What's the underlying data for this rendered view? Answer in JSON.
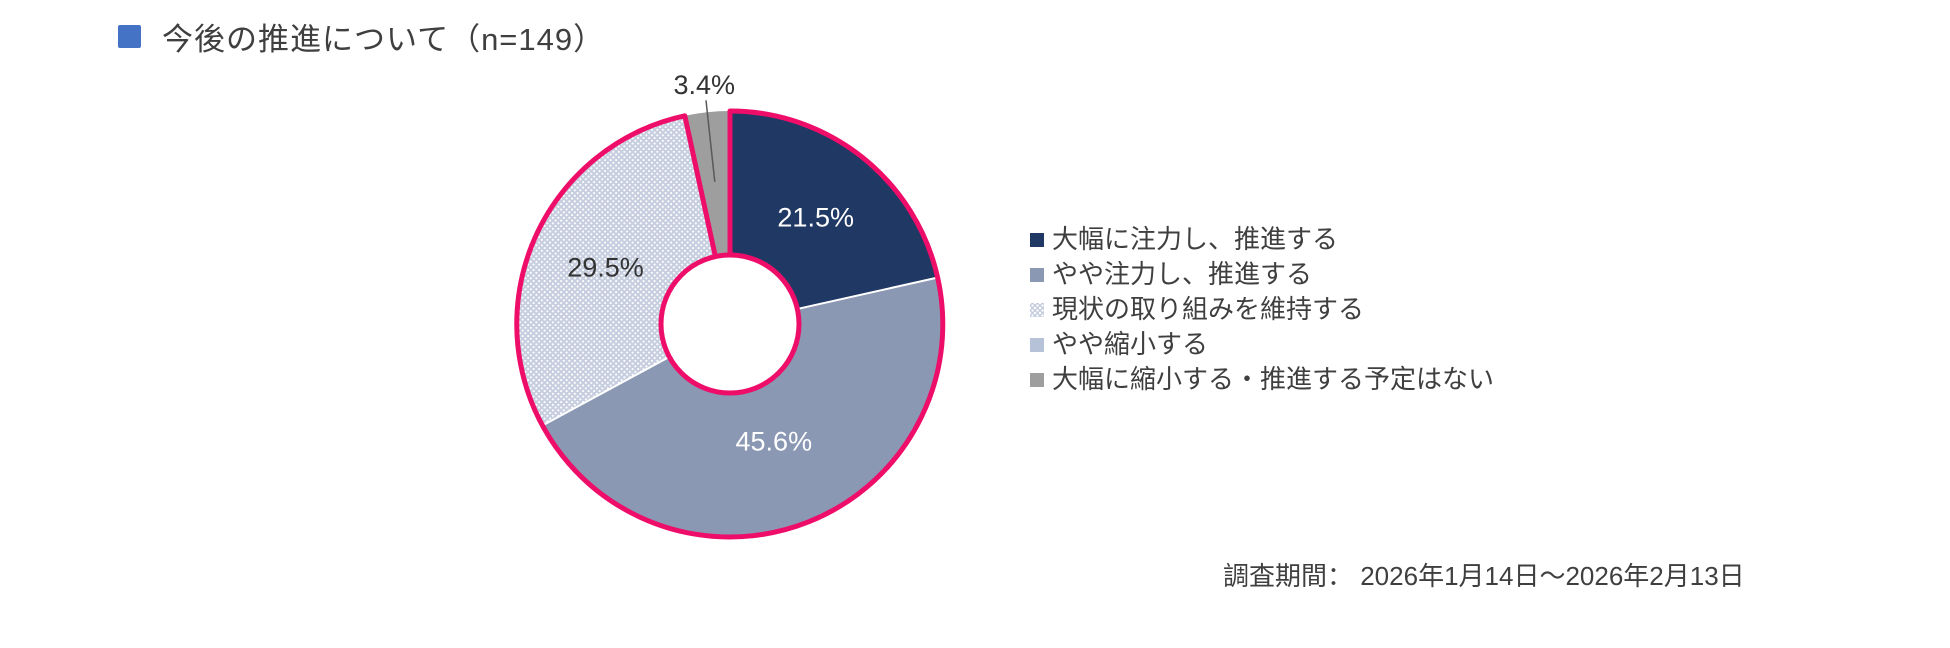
{
  "title": {
    "text": "今後の推進について（n=149）",
    "bullet_color": "#4472C4"
  },
  "footer": {
    "text": "調査期間： 2026年1月14日～2026年2月13日"
  },
  "colors": {
    "outline_pink": "#EE0E6A",
    "body_text": "#3F3F3F",
    "leader_line": "#595959"
  },
  "chart_data": {
    "type": "pie",
    "donut": true,
    "title": "今後の推進について（n=149）",
    "n_label": "n=149",
    "start_angle_deg": 0,
    "direction": "clockwise",
    "legend_position": "right",
    "outline_color": "#EE0E6A",
    "hole_ratio": 0.32,
    "categories": [
      "大幅に注力し、推進する",
      "やや注力し、推進する",
      "現状の取り組みを維持する",
      "やや縮小する",
      "大幅に縮小する・推進する予定はない"
    ],
    "values": [
      21.5,
      45.6,
      29.5,
      0.0,
      3.4
    ],
    "slices": [
      {
        "label": "大幅に注力し、推進する",
        "value": 21.5,
        "display": "21.5%",
        "color": "#1F3864",
        "pattern": false,
        "label_color": "#FFFFFF",
        "label_placement": "inside",
        "outlined": true,
        "label_radius": 137
      },
      {
        "label": "やや注力し、推進する",
        "value": 45.6,
        "display": "45.6%",
        "color": "#8A98B4",
        "pattern": false,
        "label_color": "#FFFFFF",
        "label_placement": "inside",
        "outlined": true,
        "label_radius": 125
      },
      {
        "label": "現状の取り組みを維持する",
        "value": 29.5,
        "display": "29.5%",
        "color": "#C6CEDF",
        "pattern": true,
        "label_color": "#333333",
        "label_placement": "inside",
        "outlined": true,
        "label_radius": 137
      },
      {
        "label": "やや縮小する",
        "value": 0.0,
        "display": "",
        "color": "#B5C2D8",
        "pattern": false,
        "label_color": "#333333",
        "label_placement": "none",
        "outlined": false,
        "label_radius": 0
      },
      {
        "label": "大幅に縮小する・推進する予定はない",
        "value": 3.4,
        "display": "3.4%",
        "color": "#9E9E9E",
        "pattern": false,
        "label_color": "#333333",
        "label_placement": "outside",
        "outlined": false,
        "label_radius": 143
      }
    ]
  }
}
